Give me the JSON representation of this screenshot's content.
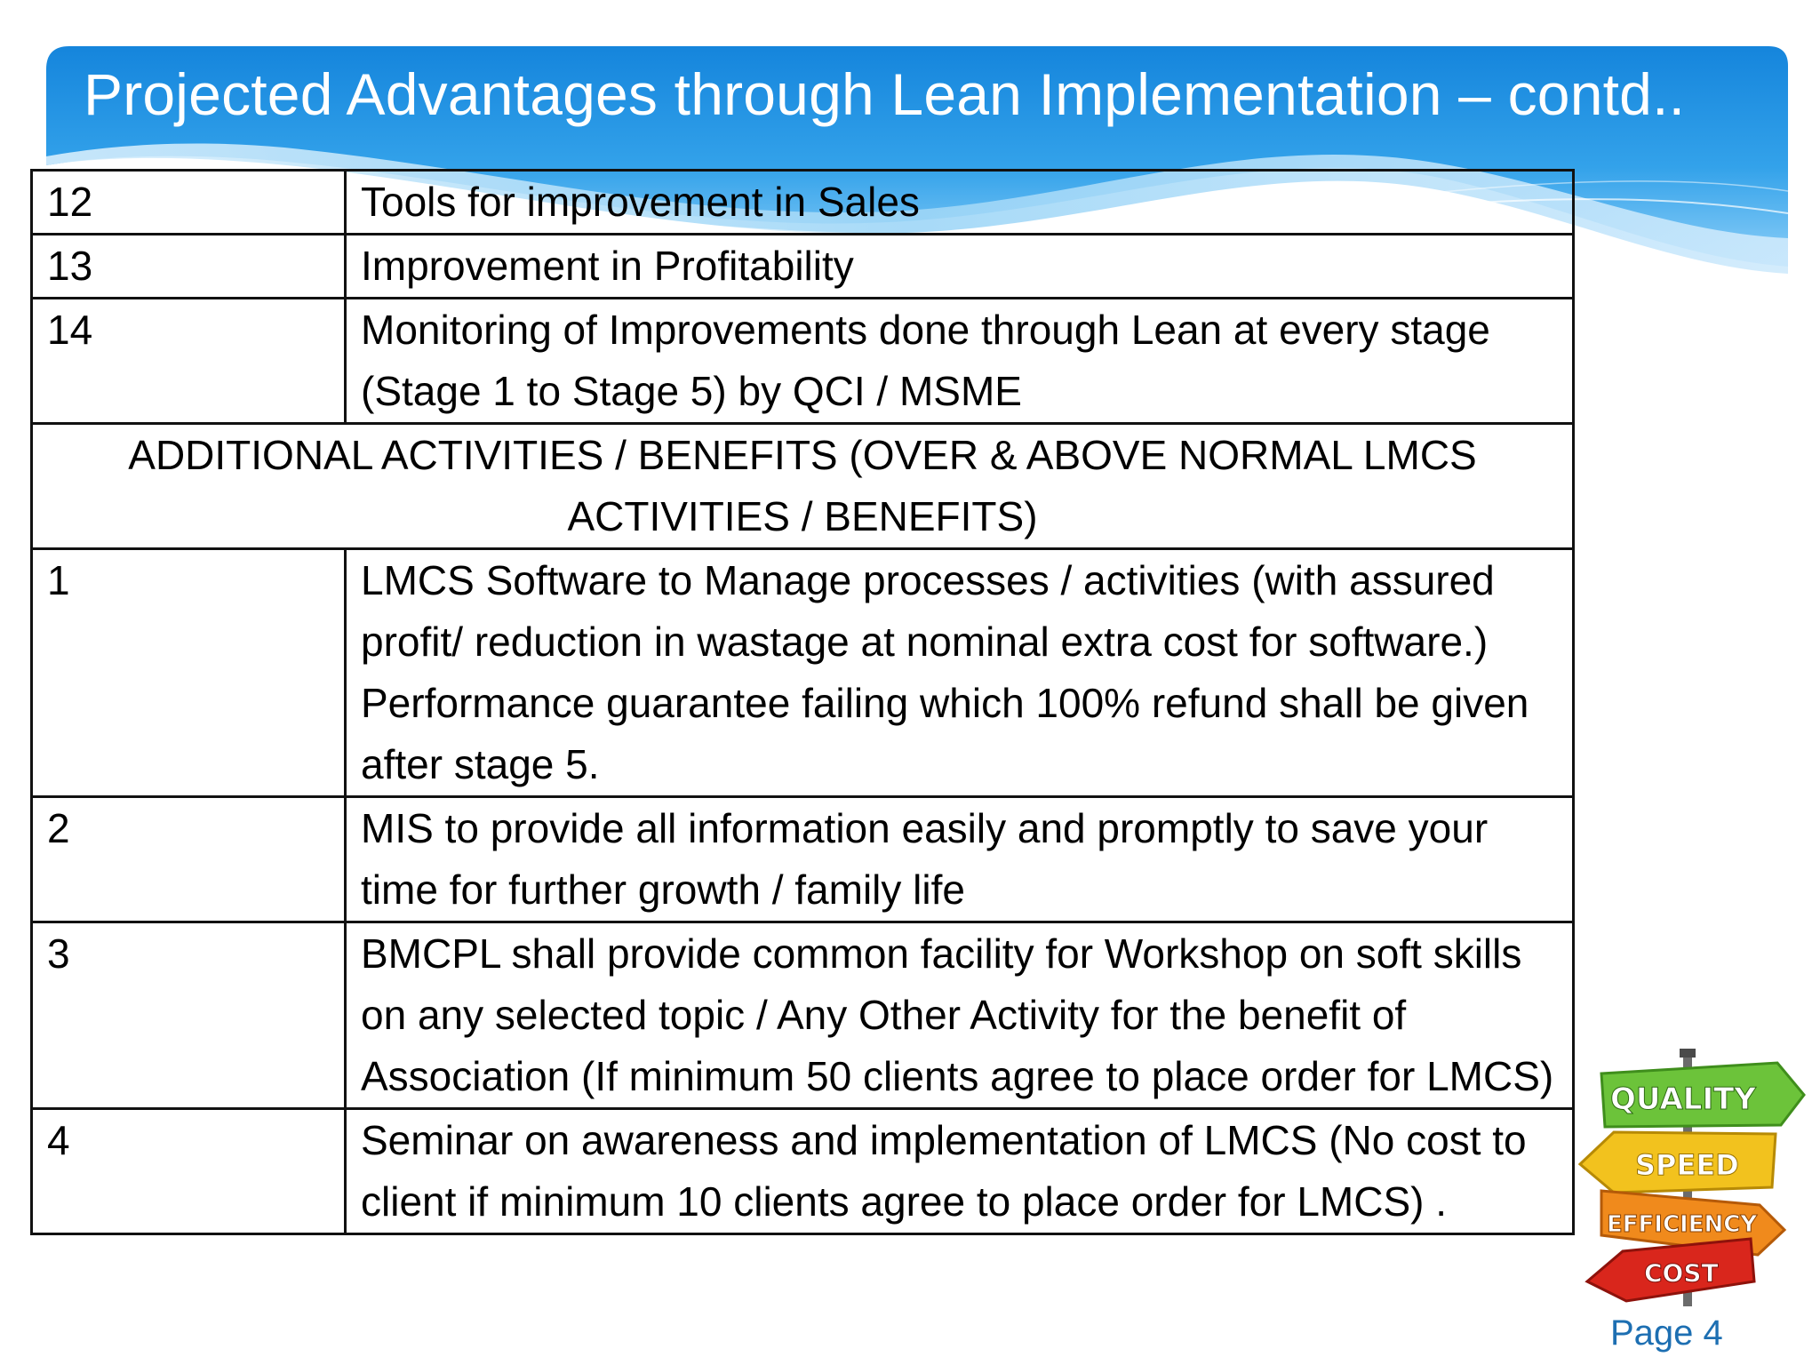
{
  "slide": {
    "title": "Projected Advantages through Lean Implementation – contd..",
    "page_label": "Page",
    "page_number": "4"
  },
  "table": {
    "rows": [
      {
        "num": "12",
        "text": "Tools for improvement in Sales"
      },
      {
        "num": "13",
        "text": "Improvement in Profitability"
      },
      {
        "num": "14",
        "text": "Monitoring of Improvements done through Lean at every stage (Stage 1 to Stage 5) by QCI / MSME"
      }
    ],
    "section_header": "ADDITIONAL ACTIVITIES / BENEFITS (OVER & ABOVE NORMAL LMCS ACTIVITIES / BENEFITS)",
    "additional_rows": [
      {
        "num": "1",
        "text": "LMCS Software to Manage processes / activities (with assured profit/ reduction in wastage at nominal extra cost for software.) Performance guarantee failing which 100% refund shall be given after stage 5."
      },
      {
        "num": "2",
        "text": "MIS to provide all information easily and promptly to save your time for further growth / family life"
      },
      {
        "num": "3",
        "text": "BMCPL shall provide common facility for Workshop on soft skills on any selected topic / Any Other Activity for the benefit of Association (If minimum 50 clients agree to place order for LMCS)"
      },
      {
        "num": "4",
        "text": "Seminar on awareness and implementation of LMCS (No cost to client if minimum 10 clients agree to place order for LMCS) ."
      }
    ]
  },
  "signpost": {
    "labels": [
      "QUALITY",
      "SPEED",
      "EFFICIENCY",
      "COST"
    ]
  },
  "colors": {
    "header_blue": "#1e8fe0",
    "header_light": "#bfe3fb",
    "title_text": "#ffffff",
    "page_number": "#1d6fb2",
    "quality_green": "#6cc33a",
    "speed_yellow": "#f2c21e",
    "efficiency_orange": "#f08a1c",
    "cost_red": "#d9261c"
  }
}
